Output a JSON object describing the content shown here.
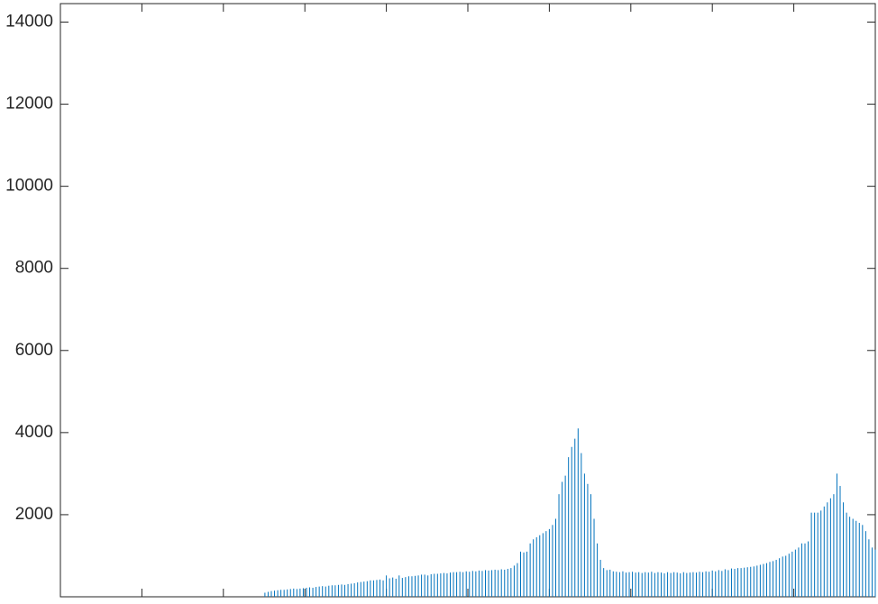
{
  "chart_data": {
    "type": "stem",
    "color": "#0072bd",
    "x": [
      0,
      1,
      2,
      3,
      4,
      5,
      6,
      7,
      8,
      9,
      10,
      11,
      12,
      13,
      14,
      15,
      16,
      17,
      18,
      19,
      20,
      21,
      22,
      23,
      24,
      25,
      26,
      27,
      28,
      29,
      30,
      31,
      32,
      33,
      34,
      35,
      36,
      37,
      38,
      39,
      40,
      41,
      42,
      43,
      44,
      45,
      46,
      47,
      48,
      49,
      50,
      51,
      52,
      53,
      54,
      55,
      56,
      57,
      58,
      59,
      60,
      61,
      62,
      63,
      64,
      65,
      66,
      67,
      68,
      69,
      70,
      71,
      72,
      73,
      74,
      75,
      76,
      77,
      78,
      79,
      80,
      81,
      82,
      83,
      84,
      85,
      86,
      87,
      88,
      89,
      90,
      91,
      92,
      93,
      94,
      95,
      96,
      97,
      98,
      99,
      100,
      101,
      102,
      103,
      104,
      105,
      106,
      107,
      108,
      109,
      110,
      111,
      112,
      113,
      114,
      115,
      116,
      117,
      118,
      119,
      120,
      121,
      122,
      123,
      124,
      125,
      126,
      127,
      128,
      129,
      130,
      131,
      132,
      133,
      134,
      135,
      136,
      137,
      138,
      139,
      140,
      141,
      142,
      143,
      144,
      145,
      146,
      147,
      148,
      149,
      150,
      151,
      152,
      153,
      154,
      155,
      156,
      157,
      158,
      159,
      160,
      161,
      162,
      163,
      164,
      165,
      166,
      167,
      168,
      169,
      170,
      171,
      172,
      173,
      174,
      175,
      176,
      177,
      178,
      179,
      180,
      181,
      182,
      183,
      184,
      185,
      186,
      187,
      188,
      189,
      190,
      191,
      192,
      193,
      194,
      195,
      196,
      197,
      198,
      199,
      200,
      201,
      202,
      203,
      204,
      205,
      206,
      207,
      208,
      209,
      210,
      211,
      212,
      213,
      214,
      215,
      216,
      217,
      218,
      219,
      220,
      221,
      222,
      223,
      224,
      225,
      226,
      227,
      228,
      229,
      230,
      231,
      232,
      233,
      234,
      235,
      236,
      237,
      238,
      239,
      240,
      241,
      242,
      243,
      244,
      245,
      246,
      247,
      248,
      249,
      250,
      251,
      252,
      253,
      254,
      255
    ],
    "values": [
      0,
      0,
      0,
      0,
      0,
      0,
      0,
      0,
      0,
      0,
      0,
      0,
      0,
      0,
      0,
      0,
      0,
      0,
      0,
      0,
      0,
      0,
      0,
      0,
      0,
      0,
      0,
      0,
      0,
      0,
      0,
      0,
      0,
      0,
      0,
      0,
      0,
      0,
      0,
      0,
      0,
      0,
      0,
      0,
      0,
      0,
      0,
      0,
      0,
      0,
      0,
      0,
      0,
      0,
      0,
      0,
      0,
      0,
      0,
      0,
      0,
      0,
      0,
      0,
      100,
      120,
      140,
      150,
      160,
      170,
      170,
      180,
      190,
      200,
      190,
      200,
      210,
      220,
      230,
      220,
      240,
      250,
      260,
      250,
      270,
      280,
      280,
      290,
      300,
      290,
      310,
      320,
      330,
      350,
      360,
      370,
      380,
      400,
      400,
      410,
      420,
      400,
      520,
      450,
      470,
      440,
      520,
      460,
      480,
      500,
      500,
      510,
      520,
      540,
      540,
      520,
      550,
      560,
      560,
      570,
      580,
      570,
      590,
      600,
      600,
      610,
      600,
      620,
      610,
      630,
      620,
      640,
      630,
      650,
      640,
      650,
      660,
      650,
      670,
      660,
      680,
      700,
      760,
      820,
      1100,
      1080,
      1100,
      1300,
      1400,
      1450,
      1500,
      1550,
      1600,
      1650,
      1750,
      1900,
      2500,
      2800,
      2950,
      3400,
      3650,
      3850,
      4100,
      3500,
      3000,
      2750,
      2500,
      1900,
      1300,
      900,
      700,
      650,
      660,
      620,
      610,
      600,
      620,
      590,
      600,
      610,
      590,
      600,
      580,
      600,
      590,
      610,
      580,
      600,
      590,
      570,
      600,
      580,
      600,
      590,
      570,
      600,
      580,
      590,
      600,
      590,
      610,
      600,
      620,
      610,
      640,
      620,
      650,
      630,
      670,
      650,
      690,
      680,
      700,
      700,
      710,
      720,
      730,
      740,
      760,
      780,
      800,
      820,
      850,
      870,
      900,
      940,
      980,
      1000,
      1050,
      1100,
      1150,
      1200,
      1300,
      1300,
      1350,
      2050,
      2050,
      2050,
      2100,
      2200,
      2300,
      2400,
      2500,
      3000,
      2700,
      2300,
      2050,
      1950,
      1900,
      1850,
      1800,
      1750,
      1600,
      1400,
      1200,
      1150
    ],
    "xlim": [
      0,
      255
    ],
    "xticks": [
      25.5,
      51,
      76.5,
      102,
      127.5,
      153,
      178.5,
      204,
      229.5
    ],
    "ylim": [
      0,
      14450
    ],
    "yticks": [
      2000,
      4000,
      6000,
      8000,
      10000,
      12000,
      14000
    ]
  }
}
